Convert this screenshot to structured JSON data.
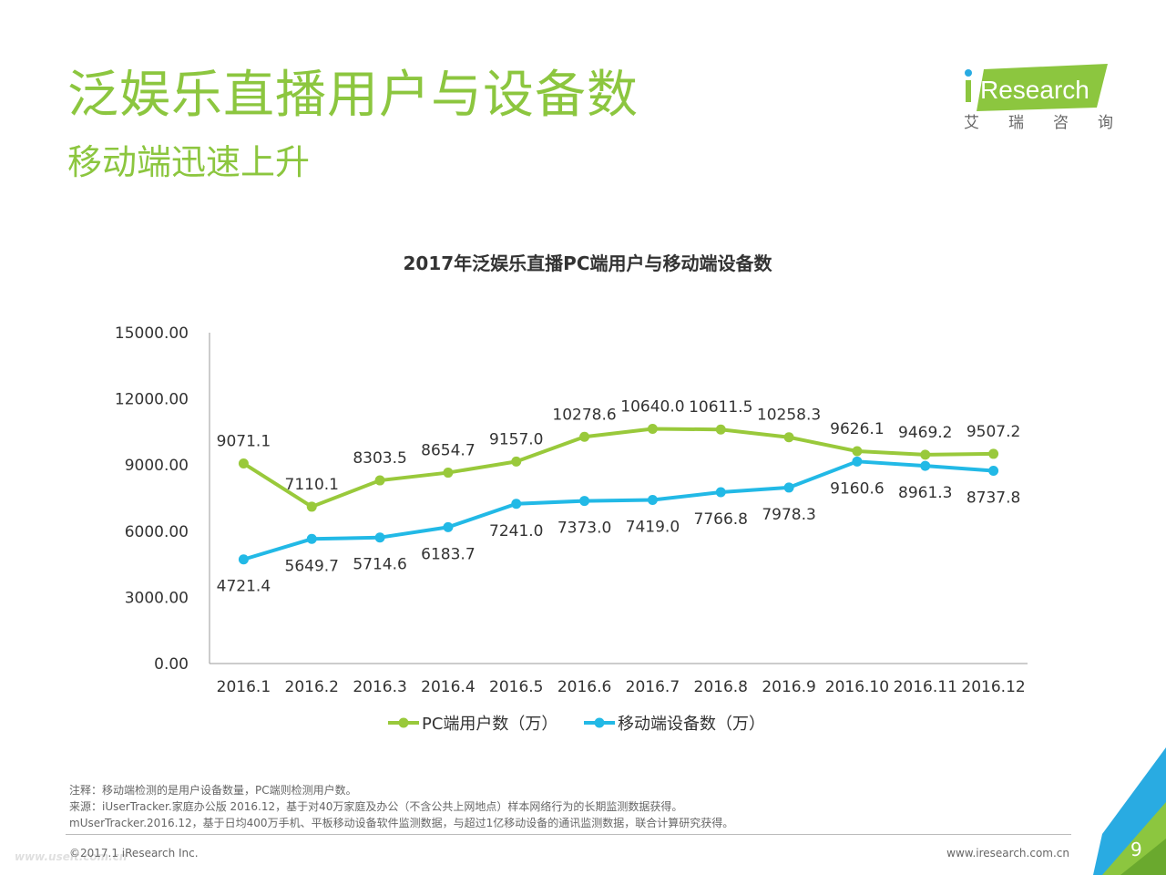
{
  "slide": {
    "title": "泛娱乐直播用户与设备数",
    "subtitle": "移动端迅速上升",
    "brand": {
      "name": "iResearch",
      "cn_chars": [
        "艾",
        "瑞",
        "咨",
        "询"
      ]
    },
    "notes": [
      "注释：移动端检测的是用户设备数量，PC端则检测用户数。",
      "来源：iUserTracker.家庭办公版 2016.12，基于对40万家庭及办公（不含公共上网地点）样本网络行为的长期监测数据获得。",
      "mUserTracker.2016.12，基于日均400万手机、平板移动设备软件监测数据，与超过1亿移动设备的通讯监测数据，联合计算研究获得。"
    ],
    "copyright": "©2017.1 iResearch Inc.",
    "website": "www.iresearch.com.cn",
    "watermark": "www.useit.com.cn",
    "page_number": "9"
  },
  "colors": {
    "title": "#8cc63f",
    "pc_series": "#99c93b",
    "mobile_series": "#22b9e6",
    "corner_blue": "#29abe2",
    "corner_green": "#8cc63f"
  },
  "chart_data": {
    "type": "line",
    "title": "2017年泛娱乐直播PC端用户与移动端设备数",
    "categories": [
      "2016.1",
      "2016.2",
      "2016.3",
      "2016.4",
      "2016.5",
      "2016.6",
      "2016.7",
      "2016.8",
      "2016.9",
      "2016.10",
      "2016.11",
      "2016.12"
    ],
    "series": [
      {
        "name": "PC端用户数（万）",
        "values": [
          9071.1,
          7110.1,
          8303.5,
          8654.7,
          9157.0,
          10278.6,
          10640.0,
          10611.5,
          10258.3,
          9626.1,
          9469.2,
          9507.2
        ],
        "labels": [
          "9071.1",
          "7110.1",
          "8303.5",
          "8654.7",
          "9157.0",
          "10278.6",
          "10640.0",
          "10611.5",
          "10258.3",
          "9626.1",
          "9469.2",
          "9507.2"
        ],
        "label_position": "above"
      },
      {
        "name": "移动端设备数（万）",
        "values": [
          4721.4,
          5649.7,
          5714.6,
          6183.7,
          7241.0,
          7373.0,
          7419.0,
          7766.8,
          7978.3,
          9160.6,
          8961.3,
          8737.8
        ],
        "labels": [
          "4721.4",
          "5649.7",
          "5714.6",
          "6183.7",
          "7241.0",
          "7373.0",
          "7419.0",
          "7766.8",
          "7978.3",
          "9160.6",
          "8961.3",
          "8737.8"
        ],
        "label_position": "below"
      }
    ],
    "y_ticks": [
      "0.00",
      "3000.00",
      "6000.00",
      "9000.00",
      "12000.00",
      "15000.00"
    ],
    "ylim": [
      0,
      15000
    ],
    "grid": false,
    "legend": "bottom-center"
  }
}
